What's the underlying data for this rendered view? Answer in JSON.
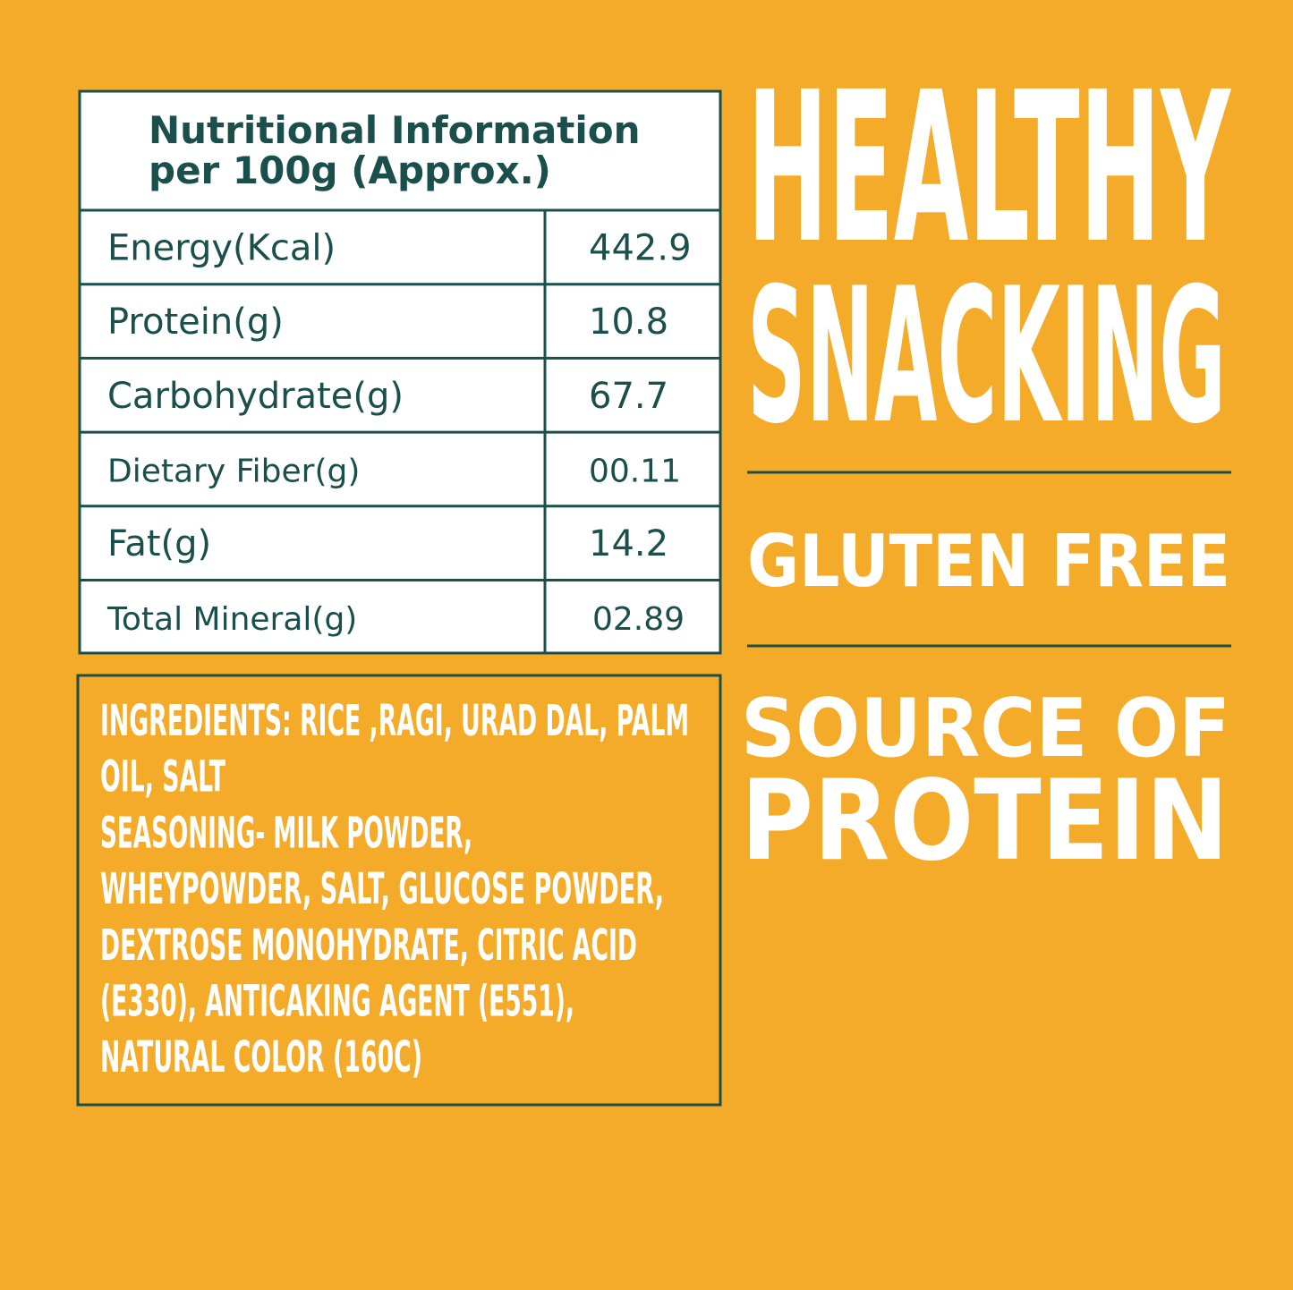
{
  "table": {
    "title": [
      "Nutritional Information",
      "per 100g (Approx.)"
    ],
    "rows": [
      [
        "Energy(Kcal)",
        "442.9"
      ],
      [
        "Protein(g)",
        "10.8"
      ],
      [
        "Carbohydrate(g)",
        "67.7"
      ],
      [
        "Dietary Fiber(g)",
        "00.11"
      ],
      [
        "Fat(g)",
        "14.2"
      ],
      [
        "Total Mineral(g)",
        "02.89"
      ]
    ]
  },
  "ingredients": {
    "lines": [
      "INGREDIENTS: RICE ,RAGI, URAD DAL, PALM",
      "OIL, SALT",
      "SEASONING- MILK POWDER,",
      "WHEYPOWDER, SALT, GLUCOSE POWDER,",
      "DEXTROSE MONOHYDRATE, CITRIC ACID",
      "(E330), ANTICAKING AGENT (E551),",
      "NATURAL COLOR (160C)"
    ]
  },
  "claims": {
    "headline": [
      "HEALTHY",
      "SNACKING"
    ],
    "gluten": "GLUTEN FREE",
    "protein": [
      "SOURCE OF",
      "PROTEIN"
    ]
  }
}
